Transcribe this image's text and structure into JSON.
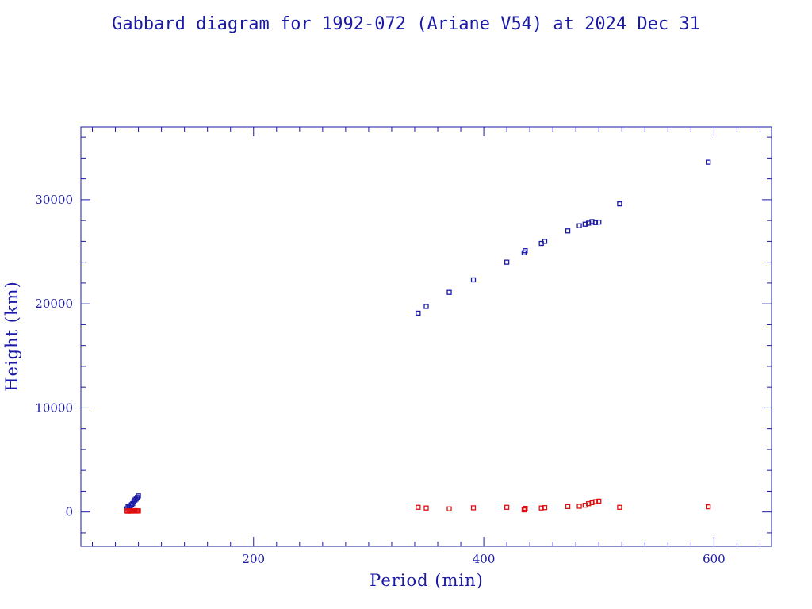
{
  "chart_data": {
    "type": "scatter",
    "title": "Gabbard diagram for 1992-072 (Ariane V54) at 2024 Dec 31",
    "xlabel": "Period (min)",
    "ylabel": "Height (km)",
    "xlim": [
      50,
      650
    ],
    "ylim": [
      -3300,
      37000
    ],
    "xticks": [
      200,
      400,
      600
    ],
    "yticks": [
      0,
      10000,
      20000,
      30000
    ],
    "grid": false,
    "colors": {
      "apogee": "#1a1aa6",
      "perigee": "#e01010",
      "axes": "#1a1aa6"
    },
    "series": [
      {
        "role": "apogee",
        "points": [
          [
            90,
            300
          ],
          [
            91,
            500
          ],
          [
            92,
            450
          ],
          [
            93,
            600
          ],
          [
            94,
            700
          ],
          [
            95,
            800
          ],
          [
            96,
            1000
          ],
          [
            97,
            1150
          ],
          [
            98,
            1250
          ],
          [
            99,
            1400
          ],
          [
            100,
            1550
          ],
          [
            343,
            19100
          ],
          [
            350,
            19750
          ],
          [
            370,
            21100
          ],
          [
            391,
            22300
          ],
          [
            420,
            24000
          ],
          [
            435,
            24900
          ],
          [
            436,
            25100
          ],
          [
            450,
            25800
          ],
          [
            453,
            26000
          ],
          [
            473,
            27000
          ],
          [
            483,
            27500
          ],
          [
            488,
            27650
          ],
          [
            491,
            27750
          ],
          [
            494,
            27900
          ],
          [
            497,
            27800
          ],
          [
            500,
            27850
          ],
          [
            518,
            29600
          ],
          [
            595,
            33600
          ]
        ]
      },
      {
        "role": "perigee",
        "points": [
          [
            90,
            100
          ],
          [
            91,
            80
          ],
          [
            92,
            120
          ],
          [
            93,
            100
          ],
          [
            94,
            90
          ],
          [
            95,
            110
          ],
          [
            96,
            100
          ],
          [
            97,
            130
          ],
          [
            98,
            90
          ],
          [
            99,
            110
          ],
          [
            100,
            100
          ],
          [
            343,
            450
          ],
          [
            350,
            380
          ],
          [
            370,
            300
          ],
          [
            391,
            400
          ],
          [
            420,
            450
          ],
          [
            435,
            200
          ],
          [
            436,
            350
          ],
          [
            450,
            380
          ],
          [
            453,
            420
          ],
          [
            473,
            520
          ],
          [
            483,
            550
          ],
          [
            488,
            650
          ],
          [
            491,
            800
          ],
          [
            494,
            900
          ],
          [
            497,
            1000
          ],
          [
            500,
            1050
          ],
          [
            518,
            450
          ],
          [
            595,
            500
          ]
        ]
      }
    ]
  }
}
